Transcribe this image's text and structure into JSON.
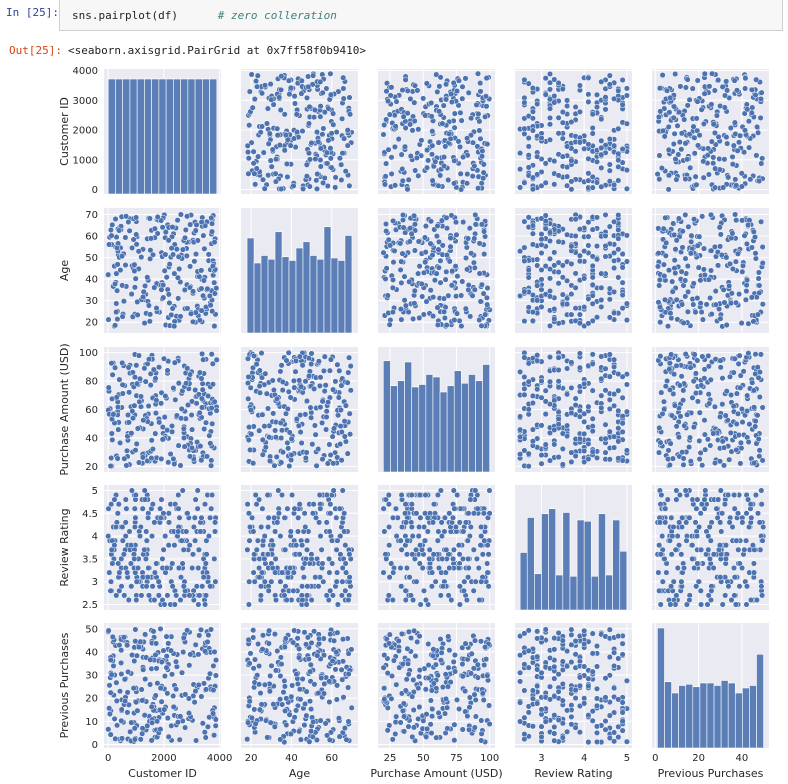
{
  "notebook": {
    "in_prompt": "In [25]:",
    "code": "sns.pairplot(df)",
    "comment": "# zero colleration",
    "out_prompt": "Out[25]:",
    "output_text": "<seaborn.axisgrid.PairGrid at 0x7ff58f0b9410>"
  },
  "colors": {
    "point": "#4c72b0",
    "panel_bg": "#eaeaf2",
    "grid": "#ffffff"
  },
  "chart_data": {
    "type": "scatter",
    "variables": [
      {
        "name": "Customer ID",
        "range": [
          0,
          3900
        ],
        "ticks": [
          0,
          1000,
          2000,
          3000,
          4000
        ],
        "x_ticks": [
          0,
          2000,
          4000
        ],
        "lim": [
          -150,
          4050
        ]
      },
      {
        "name": "Age",
        "range": [
          18,
          70
        ],
        "ticks": [
          20,
          30,
          40,
          50,
          60,
          70
        ],
        "x_ticks": [
          20,
          40,
          60
        ],
        "lim": [
          15,
          73
        ]
      },
      {
        "name": "Purchase Amount (USD)",
        "range": [
          20,
          100
        ],
        "ticks": [
          20,
          40,
          60,
          80,
          100
        ],
        "x_ticks": [
          25,
          50,
          75,
          100
        ],
        "lim": [
          16,
          104
        ]
      },
      {
        "name": "Review Rating",
        "range": [
          2.5,
          5.0
        ],
        "ticks": [
          2.5,
          3.0,
          3.5,
          4.0,
          4.5,
          5.0
        ],
        "x_ticks": [
          3,
          4,
          5
        ],
        "lim": [
          2.38,
          5.12
        ],
        "discrete_step": 0.1
      },
      {
        "name": "Previous Purchases",
        "range": [
          1,
          50
        ],
        "ticks": [
          0,
          10,
          20,
          30,
          40,
          50
        ],
        "x_ticks": [
          0,
          20,
          40
        ],
        "lim": [
          -1.5,
          52.5
        ]
      }
    ],
    "histograms": [
      {
        "variable": "Customer ID",
        "relative_heights": [
          0.92,
          0.92,
          0.92,
          0.92,
          0.92,
          0.92,
          0.92,
          0.92,
          0.92,
          0.92,
          0.92,
          0.92,
          0.92,
          0.92,
          0.92
        ]
      },
      {
        "variable": "Age",
        "relative_heights": [
          0.76,
          0.56,
          0.62,
          0.59,
          0.81,
          0.61,
          0.58,
          0.68,
          0.73,
          0.62,
          0.59,
          0.85,
          0.6,
          0.58,
          0.78
        ]
      },
      {
        "variable": "Purchase Amount (USD)",
        "relative_heights": [
          0.89,
          0.69,
          0.73,
          0.88,
          0.68,
          0.7,
          0.78,
          0.76,
          0.64,
          0.69,
          0.81,
          0.71,
          0.78,
          0.73,
          0.86
        ]
      },
      {
        "variable": "Review Rating",
        "relative_heights": [
          0.46,
          0.74,
          0.29,
          0.77,
          0.81,
          0.28,
          0.78,
          0.27,
          0.72,
          0.71,
          0.27,
          0.77,
          0.28,
          0.72,
          0.47
        ]
      },
      {
        "variable": "Previous Purchases",
        "relative_heights": [
          0.96,
          0.53,
          0.44,
          0.5,
          0.51,
          0.49,
          0.52,
          0.52,
          0.5,
          0.54,
          0.52,
          0.44,
          0.48,
          0.5,
          0.75
        ]
      }
    ],
    "grid": true,
    "legend": "none"
  }
}
